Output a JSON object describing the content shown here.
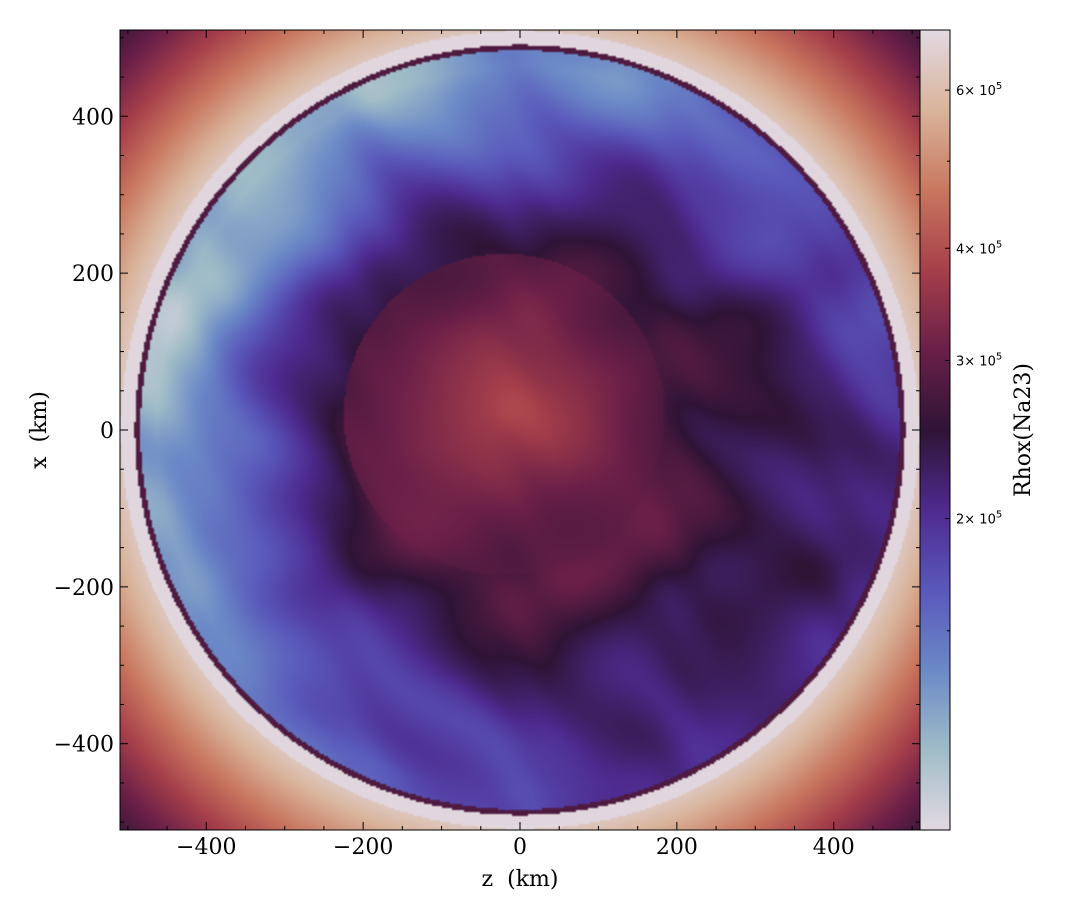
{
  "chart_data": {
    "type": "heatmap",
    "xlabel": "z  (km)",
    "ylabel": "x  (km)",
    "xlim": [
      -510,
      510
    ],
    "ylim": [
      -510,
      510
    ],
    "x_ticks": [
      {
        "value": -400,
        "label": "−400"
      },
      {
        "value": -200,
        "label": "−200"
      },
      {
        "value": 0,
        "label": "0"
      },
      {
        "value": 200,
        "label": "200"
      },
      {
        "value": 400,
        "label": "400"
      }
    ],
    "y_ticks": [
      {
        "value": -400,
        "label": "−400"
      },
      {
        "value": -200,
        "label": "−200"
      },
      {
        "value": 0,
        "label": "0"
      },
      {
        "value": 200,
        "label": "200"
      },
      {
        "value": 400,
        "label": "400"
      }
    ],
    "colorbar": {
      "label": "Rhox(Na23)",
      "scale": "log",
      "range": [
        90000,
        700000
      ],
      "colormap": "twilight_shifted",
      "ticks": [
        {
          "value": 200000,
          "mantissa": "2",
          "base": "× 10",
          "exp": "5"
        },
        {
          "value": 300000,
          "mantissa": "3",
          "base": "× 10",
          "exp": "5"
        },
        {
          "value": 400000,
          "mantissa": "4",
          "base": "× 10",
          "exp": "5"
        },
        {
          "value": 600000,
          "mantissa": "6",
          "base": "× 10",
          "exp": "5"
        }
      ]
    },
    "field": {
      "shock_radius_km": 487,
      "core_value": 380000,
      "shell_value": 280000,
      "bright_edge_value": 110000,
      "ambient_near_value": 690000,
      "ambient_far_value": 270000
    }
  },
  "colors": {
    "cmap_stops": [
      "#e2d9e2",
      "#9fbcc7",
      "#6b89c7",
      "#5a58bb",
      "#4e2a8f",
      "#2f1436",
      "#6a1f48",
      "#a63f4a",
      "#c9775f",
      "#d9b49b",
      "#e2d9e2"
    ]
  }
}
